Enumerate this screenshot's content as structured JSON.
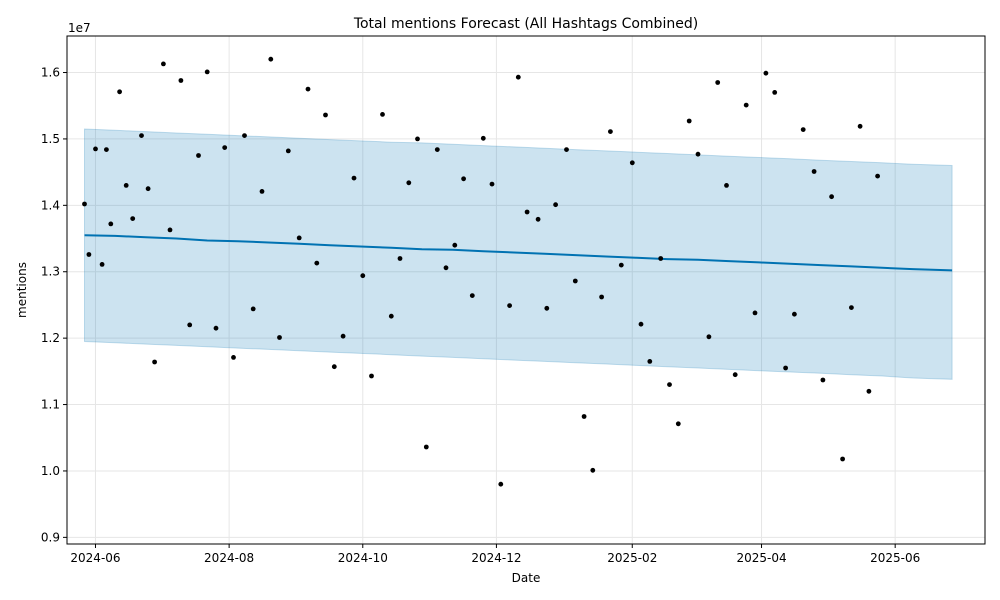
{
  "chart_data": {
    "type": "line",
    "title": "Total mentions Forecast (All Hashtags Combined)",
    "xlabel": "Date",
    "ylabel": "mentions",
    "y_offset_label": "1e7",
    "x_tick_labels": [
      "2024-06",
      "2024-08",
      "2024-10",
      "2024-12",
      "2025-02",
      "2025-04",
      "2025-06"
    ],
    "x_ticks": [
      "2024-06-01",
      "2024-08-01",
      "2024-10-01",
      "2024-12-01",
      "2025-02-01",
      "2025-04-01",
      "2025-06-01"
    ],
    "xlim": [
      "2024-05-19",
      "2025-07-12"
    ],
    "y_tick_labels": [
      "0.9",
      "1.0",
      "1.1",
      "1.2",
      "1.3",
      "1.4",
      "1.5",
      "1.6"
    ],
    "y_ticks": [
      0.9,
      1.0,
      1.1,
      1.2,
      1.3,
      1.4,
      1.5,
      1.6
    ],
    "ylim": [
      0.89,
      1.655
    ],
    "grid": true,
    "colors": {
      "forecast": "#0072B2",
      "band": "#0072B2",
      "observed": "#000000"
    },
    "series": [
      {
        "kind": "forecast",
        "x": [
          "2024-05-27",
          "2024-06-10",
          "2024-06-24",
          "2024-07-08",
          "2024-07-22",
          "2024-08-05",
          "2024-08-19",
          "2024-09-02",
          "2024-09-16",
          "2024-09-30",
          "2024-10-14",
          "2024-10-28",
          "2024-11-11",
          "2024-11-25",
          "2024-12-09",
          "2024-12-23",
          "2025-01-06",
          "2025-01-20",
          "2025-02-03",
          "2025-02-17",
          "2025-03-03",
          "2025-03-17",
          "2025-03-31",
          "2025-04-14",
          "2025-04-28",
          "2025-05-12",
          "2025-05-26",
          "2025-06-09",
          "2025-06-27"
        ],
        "values": [
          1.355,
          1.354,
          1.352,
          1.35,
          1.347,
          1.346,
          1.344,
          1.342,
          1.34,
          1.338,
          1.336,
          1.334,
          1.333,
          1.331,
          1.329,
          1.327,
          1.325,
          1.323,
          1.321,
          1.319,
          1.318,
          1.316,
          1.314,
          1.312,
          1.31,
          1.308,
          1.306,
          1.304,
          1.302
        ],
        "lower": [
          1.195,
          1.193,
          1.191,
          1.189,
          1.187,
          1.185,
          1.183,
          1.181,
          1.179,
          1.177,
          1.175,
          1.173,
          1.171,
          1.169,
          1.167,
          1.165,
          1.163,
          1.161,
          1.159,
          1.157,
          1.155,
          1.153,
          1.151,
          1.149,
          1.147,
          1.145,
          1.143,
          1.14,
          1.138
        ],
        "upper": [
          1.515,
          1.513,
          1.511,
          1.509,
          1.507,
          1.505,
          1.503,
          1.501,
          1.499,
          1.497,
          1.495,
          1.494,
          1.492,
          1.49,
          1.488,
          1.486,
          1.484,
          1.482,
          1.48,
          1.478,
          1.476,
          1.474,
          1.472,
          1.47,
          1.468,
          1.466,
          1.464,
          1.462,
          1.46
        ]
      },
      {
        "kind": "observed",
        "x": [
          "2024-05-27",
          "2024-05-29",
          "2024-06-01",
          "2024-06-04",
          "2024-06-06",
          "2024-06-08",
          "2024-06-12",
          "2024-06-15",
          "2024-06-18",
          "2024-06-22",
          "2024-06-25",
          "2024-06-28",
          "2024-07-02",
          "2024-07-05",
          "2024-07-10",
          "2024-07-14",
          "2024-07-18",
          "2024-07-22",
          "2024-07-26",
          "2024-07-30",
          "2024-08-03",
          "2024-08-08",
          "2024-08-12",
          "2024-08-16",
          "2024-08-20",
          "2024-08-24",
          "2024-08-28",
          "2024-09-02",
          "2024-09-06",
          "2024-09-10",
          "2024-09-14",
          "2024-09-18",
          "2024-09-22",
          "2024-09-27",
          "2024-10-01",
          "2024-10-05",
          "2024-10-10",
          "2024-10-14",
          "2024-10-18",
          "2024-10-22",
          "2024-10-26",
          "2024-10-30",
          "2024-11-04",
          "2024-11-08",
          "2024-11-12",
          "2024-11-16",
          "2024-11-20",
          "2024-11-25",
          "2024-11-29",
          "2024-12-03",
          "2024-12-07",
          "2024-12-11",
          "2024-12-15",
          "2024-12-20",
          "2024-12-24",
          "2024-12-28",
          "2025-01-02",
          "2025-01-06",
          "2025-01-10",
          "2025-01-14",
          "2025-01-18",
          "2025-01-22",
          "2025-01-27",
          "2025-02-01",
          "2025-02-05",
          "2025-02-09",
          "2025-02-14",
          "2025-02-18",
          "2025-02-22",
          "2025-02-27",
          "2025-03-03",
          "2025-03-08",
          "2025-03-12",
          "2025-03-16",
          "2025-03-20",
          "2025-03-25",
          "2025-03-29",
          "2025-04-03",
          "2025-04-07",
          "2025-04-12",
          "2025-04-16",
          "2025-04-20",
          "2025-04-25",
          "2025-04-29",
          "2025-05-03",
          "2025-05-08",
          "2025-05-12",
          "2025-05-16",
          "2025-05-20",
          "2025-05-24"
        ],
        "values": [
          1.402,
          1.326,
          1.485,
          1.311,
          1.484,
          1.372,
          1.571,
          1.43,
          1.38,
          1.505,
          1.425,
          1.164,
          1.613,
          1.363,
          1.588,
          1.22,
          1.475,
          1.601,
          1.215,
          1.487,
          1.171,
          1.505,
          1.244,
          1.421,
          1.62,
          1.201,
          1.482,
          1.351,
          1.575,
          1.313,
          1.536,
          1.157,
          1.203,
          1.441,
          1.294,
          1.143,
          1.537,
          1.233,
          1.32,
          1.434,
          1.5,
          1.036,
          1.484,
          1.306,
          1.34,
          1.44,
          1.264,
          1.501,
          1.432,
          0.98,
          1.249,
          1.593,
          1.39,
          1.379,
          1.245,
          1.401,
          1.484,
          1.286,
          1.082,
          1.001,
          1.262,
          1.511,
          1.31,
          1.464,
          1.221,
          1.165,
          1.32,
          1.13,
          1.071,
          1.527,
          1.477,
          1.202,
          1.585,
          1.43,
          1.145,
          1.551,
          1.238,
          1.599,
          1.57,
          1.155,
          1.236,
          1.514,
          1.451,
          1.137,
          1.413,
          1.018,
          1.246,
          1.519,
          1.12,
          1.444
        ]
      }
    ]
  }
}
